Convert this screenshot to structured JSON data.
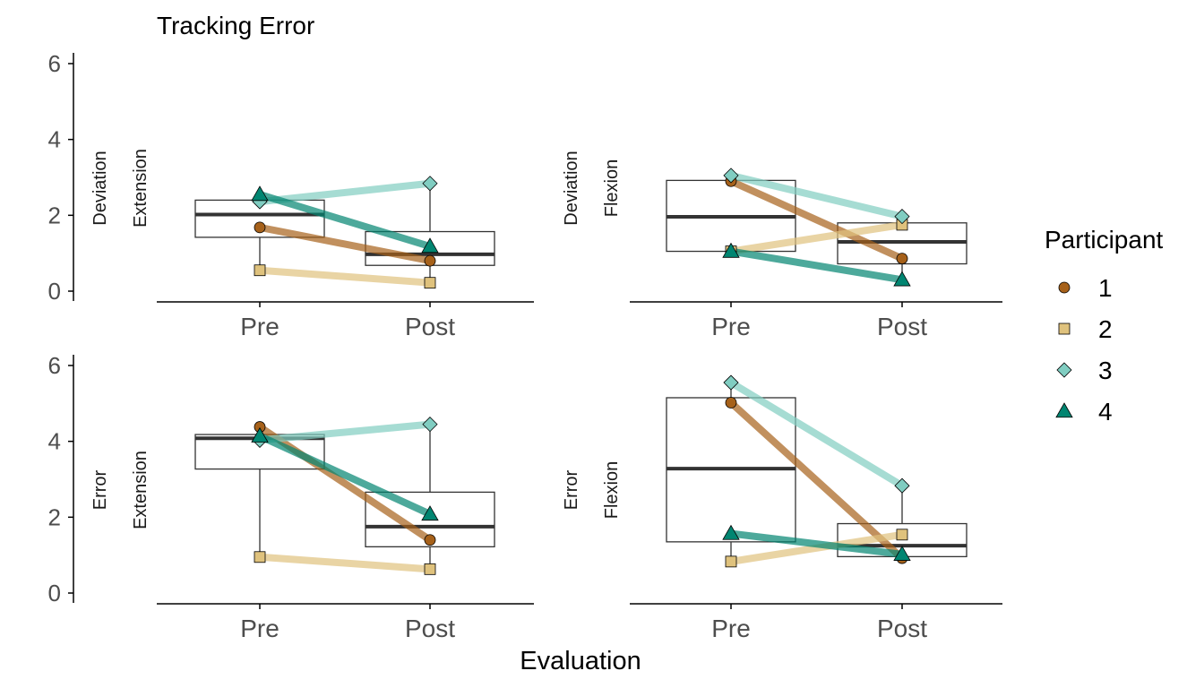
{
  "chart_data": {
    "type": "box",
    "title": "Tracking Error",
    "xlabel": "Evaluation",
    "ylabel": "",
    "ylim": [
      0,
      6
    ],
    "y_ticks": [
      0,
      2,
      4,
      6
    ],
    "categories": [
      "Pre",
      "Post"
    ],
    "legend": {
      "title": "Participant",
      "position": "right",
      "entries": [
        {
          "label": "1",
          "shape": "circle",
          "color": "#A6611A"
        },
        {
          "label": "2",
          "shape": "square",
          "color": "#DFC27D"
        },
        {
          "label": "3",
          "shape": "diamond",
          "color": "#80CDC1"
        },
        {
          "label": "4",
          "shape": "triangle",
          "color": "#018571"
        }
      ]
    },
    "panels": [
      {
        "strip_outer": "Deviation",
        "strip_inner": "Extension",
        "boxes": [
          {
            "category": "Pre",
            "q1": 1.42,
            "median": 2.02,
            "q3": 2.4,
            "whisker_low": 0.55,
            "whisker_high": 2.55
          },
          {
            "category": "Post",
            "q1": 0.68,
            "median": 0.97,
            "q3": 1.57,
            "whisker_low": 0.22,
            "whisker_high": 2.84
          }
        ],
        "series": [
          {
            "name": "1",
            "values": [
              1.68,
              0.8
            ]
          },
          {
            "name": "2",
            "values": [
              0.55,
              0.22
            ]
          },
          {
            "name": "3",
            "values": [
              2.36,
              2.84
            ]
          },
          {
            "name": "4",
            "values": [
              2.55,
              1.18
            ]
          }
        ]
      },
      {
        "strip_outer": "Deviation",
        "strip_inner": "Flexion",
        "boxes": [
          {
            "category": "Pre",
            "q1": 1.05,
            "median": 1.96,
            "q3": 2.92,
            "whisker_low": 1.05,
            "whisker_high": 3.05
          },
          {
            "category": "Post",
            "q1": 0.72,
            "median": 1.3,
            "q3": 1.8,
            "whisker_low": 0.3,
            "whisker_high": 1.97
          }
        ],
        "series": [
          {
            "name": "1",
            "values": [
              2.9,
              0.86
            ]
          },
          {
            "name": "2",
            "values": [
              1.05,
              1.75
            ]
          },
          {
            "name": "3",
            "values": [
              3.05,
              1.97
            ]
          },
          {
            "name": "4",
            "values": [
              1.05,
              0.3
            ]
          }
        ]
      },
      {
        "strip_outer": "Error",
        "strip_inner": "Extension",
        "boxes": [
          {
            "category": "Pre",
            "q1": 3.27,
            "median": 4.08,
            "q3": 4.18,
            "whisker_low": 0.95,
            "whisker_high": 4.38
          },
          {
            "category": "Post",
            "q1": 1.22,
            "median": 1.75,
            "q3": 2.66,
            "whisker_low": 0.63,
            "whisker_high": 4.45
          }
        ],
        "series": [
          {
            "name": "1",
            "values": [
              4.38,
              1.4
            ]
          },
          {
            "name": "2",
            "values": [
              0.95,
              0.63
            ]
          },
          {
            "name": "3",
            "values": [
              4.03,
              4.45
            ]
          },
          {
            "name": "4",
            "values": [
              4.14,
              2.08
            ]
          }
        ]
      },
      {
        "strip_outer": "Error",
        "strip_inner": "Flexion",
        "boxes": [
          {
            "category": "Pre",
            "q1": 1.35,
            "median": 3.28,
            "q3": 5.15,
            "whisker_low": 0.83,
            "whisker_high": 5.55
          },
          {
            "category": "Post",
            "q1": 0.96,
            "median": 1.25,
            "q3": 1.83,
            "whisker_low": 0.92,
            "whisker_high": 2.83
          }
        ],
        "series": [
          {
            "name": "1",
            "values": [
              5.02,
              0.92
            ]
          },
          {
            "name": "2",
            "values": [
              0.83,
              1.54
            ]
          },
          {
            "name": "3",
            "values": [
              5.55,
              2.83
            ]
          },
          {
            "name": "4",
            "values": [
              1.57,
              1.02
            ]
          }
        ]
      }
    ]
  }
}
